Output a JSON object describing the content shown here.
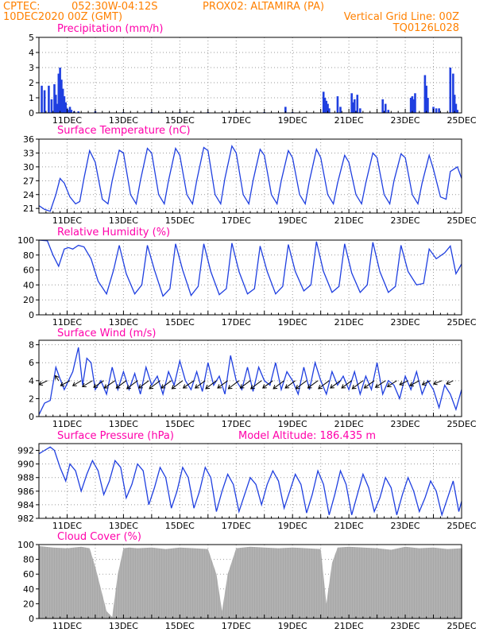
{
  "header": {
    "line1_left": "CPTEC:",
    "line1_coords": "052:30W-04:12S",
    "line1_station": "PROX02: ALTAMIRA (PA)",
    "line2_left": "10DEC2020 00Z (GMT)",
    "line2_right": "Vertical Grid Line: 00Z",
    "line3_right": "TQ0126L028"
  },
  "colors": {
    "header": "#ff8000",
    "titles": "#ff00aa",
    "series": "#1f3fe0",
    "cloud": "#a8a8a8",
    "frame": "#000000"
  },
  "x_ticks": [
    "11DEC",
    "13DEC",
    "15DEC",
    "17DEC",
    "19DEC",
    "21DEC",
    "23DEC",
    "25DEC"
  ],
  "chart_data": [
    {
      "id": "precip",
      "type": "bar",
      "title": "Precipitation (mm/h)",
      "xlabel": "",
      "ylabel": "",
      "x_unit": "days since 10DEC2020 00Z",
      "ylim": [
        0,
        5
      ],
      "yticks": [
        0,
        1,
        2,
        3,
        4,
        5
      ],
      "x": [
        0.1,
        0.2,
        0.35,
        0.45,
        0.55,
        0.6,
        0.65,
        0.7,
        0.75,
        0.8,
        0.85,
        0.9,
        0.95,
        1.0,
        1.05,
        1.1,
        1.15,
        1.25,
        1.4,
        2.0,
        3.0,
        4.0,
        5.0,
        6.0,
        7.0,
        8.0,
        8.75,
        9.0,
        10.1,
        10.15,
        10.2,
        10.25,
        10.3,
        10.6,
        10.7,
        11.1,
        11.15,
        11.2,
        11.3,
        11.4,
        12.2,
        12.3,
        12.4,
        13.2,
        13.25,
        13.3,
        13.35,
        13.7,
        13.75,
        13.8,
        14.0,
        14.1,
        14.2,
        14.6,
        14.7,
        14.75,
        14.8,
        14.85
      ],
      "values": [
        1.8,
        1.5,
        1.8,
        0.9,
        1.9,
        1.2,
        0.6,
        2.6,
        3.0,
        2.2,
        1.6,
        1.1,
        0.7,
        0.3,
        0.2,
        0.4,
        0.2,
        0.1,
        0.1,
        0.1,
        0.05,
        0.05,
        0.05,
        0.05,
        0.05,
        0.05,
        0.4,
        0.05,
        1.4,
        1.0,
        0.8,
        0.6,
        0.3,
        1.1,
        0.4,
        1.3,
        0.7,
        0.9,
        1.2,
        0.3,
        0.9,
        0.6,
        0.2,
        1.0,
        1.1,
        0.9,
        1.3,
        2.5,
        1.8,
        1.0,
        0.4,
        0.3,
        0.3,
        3.0,
        2.6,
        1.2,
        0.6,
        0.2
      ]
    },
    {
      "id": "temp",
      "type": "line",
      "title": "Surface Temperature (nC)",
      "xlabel": "",
      "ylabel": "",
      "x_unit": "days since 10DEC2020 00Z",
      "ylim": [
        20,
        36
      ],
      "yticks": [
        21,
        24,
        27,
        30,
        33,
        36
      ],
      "x": [
        0.0,
        0.2,
        0.4,
        0.6,
        0.75,
        0.9,
        1.1,
        1.3,
        1.45,
        1.6,
        1.8,
        2.0,
        2.25,
        2.45,
        2.6,
        2.85,
        3.0,
        3.25,
        3.45,
        3.6,
        3.85,
        4.0,
        4.25,
        4.45,
        4.6,
        4.85,
        5.0,
        5.25,
        5.45,
        5.6,
        5.85,
        6.0,
        6.25,
        6.45,
        6.6,
        6.85,
        7.0,
        7.25,
        7.45,
        7.6,
        7.85,
        8.0,
        8.25,
        8.45,
        8.6,
        8.85,
        9.0,
        9.25,
        9.45,
        9.6,
        9.85,
        10.0,
        10.25,
        10.45,
        10.6,
        10.85,
        11.0,
        11.25,
        11.45,
        11.6,
        11.85,
        12.0,
        12.25,
        12.45,
        12.6,
        12.85,
        13.0,
        13.25,
        13.45,
        13.6,
        13.85,
        14.0,
        14.25,
        14.45,
        14.6,
        14.85,
        15.0
      ],
      "values": [
        21.6,
        20.8,
        20.4,
        24.0,
        27.5,
        26.5,
        23.5,
        22.0,
        22.5,
        27.5,
        33.5,
        31.0,
        23.0,
        22.0,
        27.0,
        33.6,
        33.0,
        24.0,
        22.0,
        27.0,
        34.0,
        33.0,
        24.0,
        22.0,
        27.0,
        34.0,
        32.5,
        24.0,
        22.0,
        27.0,
        34.2,
        33.5,
        24.0,
        22.0,
        27.5,
        34.5,
        33.0,
        24.0,
        22.0,
        27.0,
        33.8,
        32.5,
        24.0,
        22.0,
        27.0,
        33.5,
        32.0,
        24.0,
        22.0,
        27.0,
        33.8,
        32.0,
        24.0,
        22.0,
        26.5,
        32.5,
        31.0,
        24.0,
        22.0,
        26.5,
        33.0,
        32.0,
        24.0,
        22.0,
        27.0,
        32.8,
        32.0,
        24.0,
        22.0,
        26.5,
        32.5,
        29.5,
        23.5,
        23.0,
        29.0,
        30.0,
        27.5
      ]
    },
    {
      "id": "rh",
      "type": "line",
      "title": "Relative Humidity (%)",
      "xlabel": "",
      "ylabel": "",
      "x_unit": "days since 10DEC2020 00Z",
      "ylim": [
        0,
        100
      ],
      "yticks": [
        0,
        20,
        40,
        60,
        80,
        100
      ],
      "x": [
        0.0,
        0.3,
        0.5,
        0.7,
        0.9,
        1.05,
        1.2,
        1.4,
        1.6,
        1.85,
        2.1,
        2.4,
        2.65,
        2.85,
        3.1,
        3.4,
        3.65,
        3.85,
        4.1,
        4.4,
        4.65,
        4.85,
        5.1,
        5.4,
        5.65,
        5.85,
        6.1,
        6.4,
        6.65,
        6.85,
        7.1,
        7.4,
        7.65,
        7.85,
        8.1,
        8.4,
        8.65,
        8.85,
        9.1,
        9.4,
        9.65,
        9.85,
        10.1,
        10.4,
        10.65,
        10.85,
        11.1,
        11.4,
        11.65,
        11.85,
        12.1,
        12.4,
        12.65,
        12.85,
        13.1,
        13.4,
        13.65,
        13.85,
        14.1,
        14.4,
        14.6,
        14.8,
        15.0
      ],
      "values": [
        100,
        99,
        80,
        65,
        88,
        90,
        88,
        93,
        91,
        75,
        45,
        28,
        60,
        93,
        55,
        28,
        40,
        93,
        60,
        25,
        35,
        95,
        60,
        26,
        38,
        95,
        58,
        27,
        35,
        96,
        58,
        28,
        35,
        92,
        58,
        28,
        38,
        94,
        58,
        32,
        40,
        98,
        58,
        30,
        38,
        95,
        56,
        30,
        40,
        97,
        58,
        30,
        38,
        93,
        58,
        40,
        42,
        88,
        75,
        83,
        92,
        55,
        68
      ]
    },
    {
      "id": "wind",
      "type": "line",
      "title": "Surface Wind (m/s)",
      "xlabel": "",
      "ylabel": "",
      "x_unit": "days since 10DEC2020 00Z",
      "ylim": [
        0,
        8.5
      ],
      "yticks": [
        0,
        2,
        4,
        6,
        8
      ],
      "x": [
        0.0,
        0.2,
        0.4,
        0.6,
        0.75,
        0.9,
        1.05,
        1.2,
        1.4,
        1.55,
        1.7,
        1.85,
        2.0,
        2.2,
        2.4,
        2.6,
        2.8,
        3.0,
        3.2,
        3.4,
        3.6,
        3.8,
        4.0,
        4.2,
        4.4,
        4.6,
        4.8,
        5.0,
        5.2,
        5.4,
        5.6,
        5.8,
        6.0,
        6.2,
        6.4,
        6.6,
        6.8,
        7.0,
        7.2,
        7.4,
        7.6,
        7.8,
        8.0,
        8.2,
        8.4,
        8.6,
        8.8,
        9.0,
        9.2,
        9.4,
        9.6,
        9.8,
        10.0,
        10.2,
        10.4,
        10.6,
        10.8,
        11.0,
        11.2,
        11.4,
        11.6,
        11.8,
        12.0,
        12.2,
        12.4,
        12.6,
        12.8,
        13.0,
        13.2,
        13.4,
        13.6,
        13.8,
        14.0,
        14.2,
        14.4,
        14.6,
        14.8,
        15.0
      ],
      "values": [
        0.2,
        1.5,
        1.8,
        5.5,
        4.2,
        3.0,
        4.0,
        5.0,
        7.7,
        3.5,
        6.5,
        6.0,
        3.0,
        4.0,
        2.5,
        5.5,
        3.0,
        5.0,
        3.0,
        4.8,
        2.5,
        5.5,
        3.5,
        4.5,
        2.5,
        5.0,
        3.5,
        6.2,
        4.0,
        3.0,
        5.0,
        2.8,
        6.0,
        3.5,
        4.5,
        2.5,
        6.8,
        4.0,
        3.0,
        5.5,
        2.8,
        5.5,
        4.0,
        3.5,
        6.0,
        3.0,
        5.0,
        4.0,
        2.5,
        5.5,
        3.0,
        6.0,
        4.0,
        2.5,
        5.0,
        3.5,
        4.5,
        3.0,
        5.0,
        2.5,
        4.5,
        3.0,
        6.0,
        2.5,
        4.0,
        3.5,
        2.0,
        4.5,
        3.0,
        5.0,
        2.5,
        4.0,
        3.0,
        1.0,
        3.5,
        2.5,
        0.8,
        3.0
      ],
      "arrow_x": [
        0.3,
        0.7,
        1.1,
        1.5,
        1.9,
        2.3,
        2.7,
        3.1,
        3.5,
        3.9,
        4.3,
        4.7,
        5.1,
        5.5,
        5.9,
        6.3,
        6.7,
        7.1,
        7.5,
        7.9,
        8.3,
        8.7,
        9.1,
        9.5,
        9.9,
        10.3,
        10.7,
        11.1,
        11.5,
        11.9,
        12.3,
        12.7,
        13.1,
        13.5,
        13.9,
        14.3,
        14.7
      ],
      "arrow_u": [
        -2.5,
        -1.0,
        -2.8,
        -2.5,
        -3.0,
        -3.0,
        -3.2,
        -3.0,
        -3.2,
        -3.0,
        -3.2,
        -3.0,
        -3.2,
        -3.2,
        -3.0,
        -3.2,
        -3.0,
        -3.2,
        -3.0,
        -3.2,
        -3.0,
        -3.2,
        -3.0,
        -3.2,
        -3.0,
        -3.2,
        -3.0,
        -3.0,
        -3.2,
        -3.0,
        -3.0,
        -2.8,
        -2.5,
        -2.8,
        -2.5,
        -2.5,
        -2.0
      ],
      "arrow_v": [
        -1.2,
        1.5,
        -1.5,
        -1.5,
        -1.8,
        -2.0,
        -2.2,
        -2.2,
        -2.4,
        -2.2,
        -2.4,
        -2.2,
        -2.4,
        -2.2,
        -2.2,
        -2.4,
        -2.2,
        -2.4,
        -2.2,
        -2.4,
        -2.2,
        -2.4,
        -2.2,
        -2.4,
        -2.2,
        -2.4,
        -2.2,
        -2.2,
        -2.4,
        -2.2,
        -2.0,
        -1.8,
        -1.2,
        -1.5,
        -1.2,
        -1.0,
        -1.0
      ]
    },
    {
      "id": "pres",
      "type": "line",
      "title": "Surface Pressure (hPa)",
      "annotation": "Model Altitude: 186.435 m",
      "xlabel": "",
      "ylabel": "",
      "x_unit": "days since 10DEC2020 00Z",
      "ylim": [
        982,
        993
      ],
      "yticks": [
        982,
        984,
        986,
        988,
        990,
        992
      ],
      "x": [
        0.0,
        0.2,
        0.4,
        0.55,
        0.75,
        0.95,
        1.1,
        1.3,
        1.5,
        1.7,
        1.9,
        2.1,
        2.3,
        2.5,
        2.7,
        2.9,
        3.1,
        3.3,
        3.5,
        3.7,
        3.9,
        4.1,
        4.3,
        4.5,
        4.7,
        4.9,
        5.1,
        5.3,
        5.5,
        5.7,
        5.9,
        6.1,
        6.3,
        6.5,
        6.7,
        6.9,
        7.1,
        7.3,
        7.5,
        7.7,
        7.9,
        8.1,
        8.3,
        8.5,
        8.7,
        8.9,
        9.1,
        9.3,
        9.5,
        9.7,
        9.9,
        10.1,
        10.3,
        10.5,
        10.7,
        10.9,
        11.1,
        11.3,
        11.5,
        11.7,
        11.9,
        12.1,
        12.3,
        12.5,
        12.7,
        12.9,
        13.1,
        13.3,
        13.5,
        13.7,
        13.9,
        14.1,
        14.3,
        14.5,
        14.7,
        14.9,
        15.0
      ],
      "values": [
        991.5,
        992.0,
        992.5,
        992.0,
        989.5,
        987.5,
        990.0,
        989.0,
        986.0,
        988.5,
        990.5,
        989.0,
        985.5,
        987.5,
        990.5,
        989.5,
        985.0,
        987.0,
        990.0,
        989.0,
        984.0,
        986.5,
        989.5,
        988.0,
        983.5,
        986.0,
        989.5,
        988.0,
        983.5,
        986.0,
        989.5,
        988.0,
        983.0,
        986.0,
        988.5,
        987.0,
        983.0,
        985.5,
        988.0,
        987.0,
        984.0,
        987.0,
        989.0,
        987.5,
        983.5,
        986.0,
        988.5,
        987.0,
        982.8,
        985.5,
        989.0,
        987.0,
        982.5,
        985.5,
        989.0,
        987.0,
        982.5,
        985.5,
        988.5,
        986.5,
        983.0,
        985.0,
        988.0,
        986.5,
        982.5,
        985.5,
        988.0,
        986.0,
        983.0,
        985.0,
        987.5,
        986.0,
        982.5,
        985.0,
        987.5,
        983.0,
        984.5
      ]
    },
    {
      "id": "cloud",
      "type": "area",
      "title": "Cloud Cover (%)",
      "xlabel": "",
      "ylabel": "",
      "x_unit": "days since 10DEC2020 00Z",
      "ylim": [
        0,
        100
      ],
      "yticks": [
        0,
        20,
        40,
        60,
        80,
        100
      ],
      "x": [
        0.0,
        0.5,
        1.0,
        1.5,
        1.8,
        2.0,
        2.2,
        2.4,
        2.6,
        2.8,
        3.0,
        3.2,
        3.5,
        4.0,
        4.5,
        5.0,
        5.5,
        6.0,
        6.3,
        6.5,
        6.7,
        7.0,
        7.5,
        8.0,
        8.5,
        9.0,
        9.5,
        10.0,
        10.2,
        10.4,
        10.6,
        11.0,
        11.5,
        12.0,
        12.5,
        13.0,
        13.5,
        14.0,
        14.5,
        15.0
      ],
      "values": [
        98,
        96,
        95,
        97,
        95,
        70,
        40,
        10,
        2,
        60,
        95,
        96,
        95,
        96,
        94,
        96,
        95,
        94,
        60,
        10,
        60,
        95,
        97,
        96,
        95,
        96,
        95,
        94,
        20,
        75,
        96,
        97,
        96,
        95,
        93,
        97,
        95,
        96,
        94,
        95
      ]
    }
  ]
}
